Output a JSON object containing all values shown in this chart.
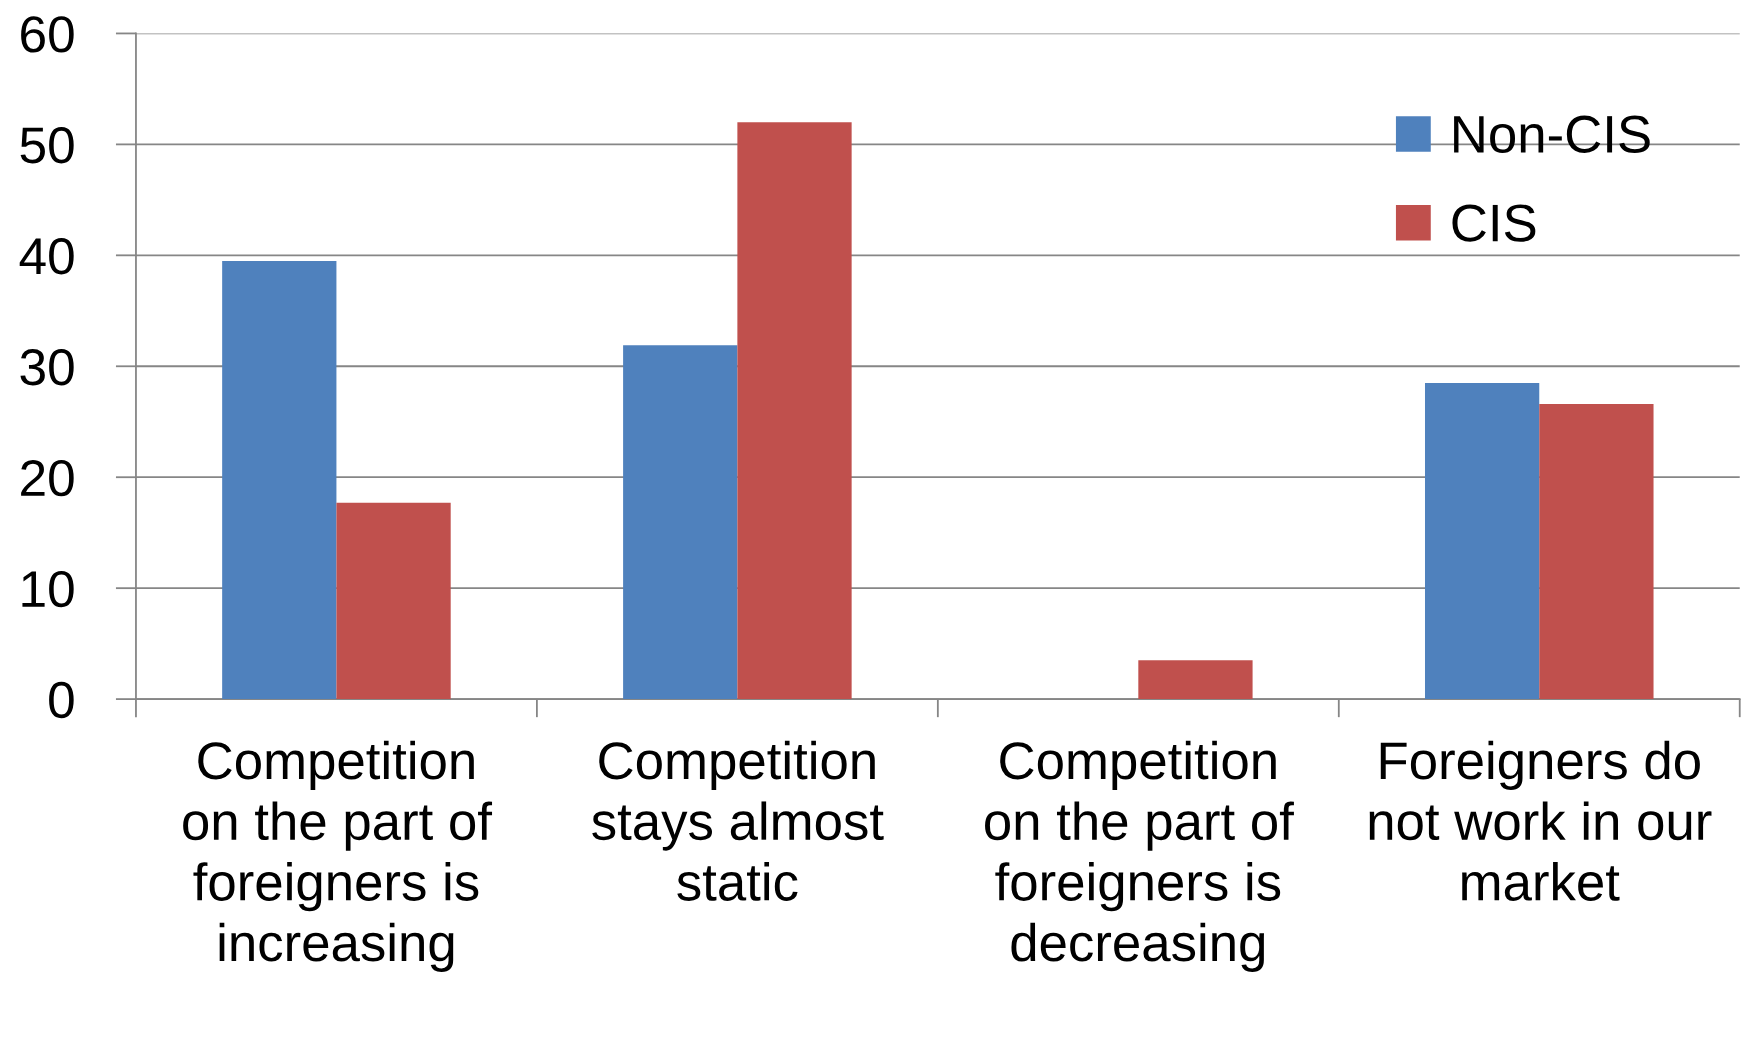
{
  "chart_data": {
    "type": "bar",
    "categories": [
      "Competition\non the part of\nforeigners is\nincreasing",
      "Competition\nstays almost\nstatic",
      "Competition\non the part of\nforeigners is\ndecreasing",
      "Foreigners do\nnot work in our\nmarket"
    ],
    "series": [
      {
        "name": "Non-CIS",
        "color": "#4f81bd",
        "values": [
          39.5,
          31.9,
          0,
          28.5
        ]
      },
      {
        "name": "CIS",
        "color": "#c0504d",
        "values": [
          17.7,
          52.0,
          3.5,
          26.6
        ]
      }
    ],
    "ylim": [
      0,
      60
    ],
    "yticks": [
      0,
      10,
      20,
      30,
      40,
      50,
      60
    ],
    "grid": "y",
    "legend": "top right"
  }
}
